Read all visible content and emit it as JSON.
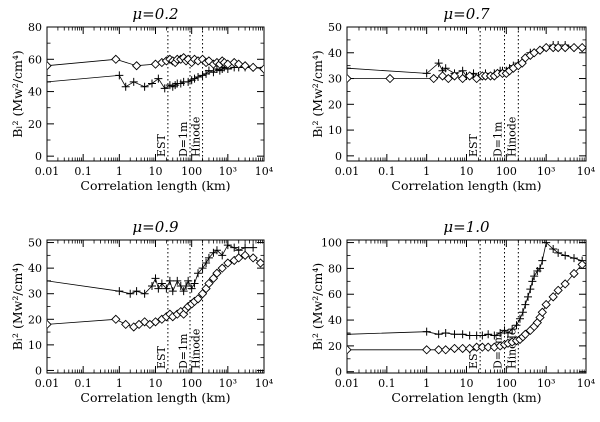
{
  "figure_note": "Four-panel figure: B_L^2 vs correlation length at different mu",
  "chart_data": [
    {
      "type": "line",
      "title": "μ=0.2",
      "xlabel": "Correlation length (km)",
      "ylabel": "Bₗ² (Mw²/cm⁴)",
      "xscale": "log",
      "xlim": [
        0.01,
        10000
      ],
      "ylim": [
        -3,
        80
      ],
      "xticks": [
        {
          "v": 0.01,
          "l": "0.01"
        },
        {
          "v": 0.1,
          "l": "0.1"
        },
        {
          "v": 1,
          "l": "1"
        },
        {
          "v": 10,
          "l": "10"
        },
        {
          "v": 100,
          "l": "100"
        },
        {
          "v": 1000,
          "l": "10³"
        },
        {
          "v": 10000,
          "l": "10⁴"
        }
      ],
      "yticks": [
        0,
        20,
        40,
        60,
        80
      ],
      "vlines": [
        {
          "x": 22,
          "label": "EST"
        },
        {
          "x": 90,
          "label": "D=1m"
        },
        {
          "x": 200,
          "label": "Hinode"
        }
      ],
      "series": [
        {
          "name": "plus",
          "marker": "plus",
          "x": [
            0.01,
            1,
            1.5,
            2.5,
            5,
            8,
            12,
            18,
            25,
            30,
            35,
            40,
            50,
            60,
            80,
            100,
            120,
            150,
            200,
            250,
            300,
            400,
            500,
            600,
            700,
            800,
            1000,
            1500,
            2000,
            3000,
            5000,
            10000
          ],
          "y": [
            46,
            50,
            43,
            46,
            43,
            45,
            48,
            42,
            44,
            43,
            44,
            45,
            45,
            46,
            46,
            47,
            48,
            49,
            50,
            51,
            53,
            52,
            54,
            53,
            54,
            55,
            54,
            55,
            55,
            55,
            55,
            55
          ]
        },
        {
          "name": "diamond",
          "marker": "diamond",
          "x": [
            0.01,
            0.8,
            3,
            10,
            15,
            20,
            25,
            30,
            35,
            40,
            50,
            60,
            70,
            80,
            100,
            120,
            150,
            200,
            250,
            300,
            400,
            500,
            600,
            700,
            800,
            1000,
            1500,
            2000,
            3000,
            5000,
            10000
          ],
          "y": [
            56,
            60,
            56,
            57,
            58,
            59,
            60,
            59,
            58,
            60,
            60,
            61,
            59,
            60,
            58,
            60,
            59,
            60,
            58,
            59,
            57,
            58,
            57,
            59,
            58,
            57,
            58,
            57,
            56,
            55,
            54
          ]
        }
      ]
    },
    {
      "type": "line",
      "title": "μ=0.7",
      "xlabel": "Correlation length (km)",
      "ylabel": "Bₗ² (Mw²/cm⁴)",
      "xscale": "log",
      "xlim": [
        0.01,
        10000
      ],
      "ylim": [
        -2,
        50
      ],
      "xticks": [
        {
          "v": 0.01,
          "l": "0.01"
        },
        {
          "v": 0.1,
          "l": "0.1"
        },
        {
          "v": 1,
          "l": "1"
        },
        {
          "v": 10,
          "l": "10"
        },
        {
          "v": 100,
          "l": "100"
        },
        {
          "v": 1000,
          "l": "10³"
        },
        {
          "v": 10000,
          "l": "10⁴"
        }
      ],
      "yticks": [
        0,
        10,
        20,
        30,
        40,
        50
      ],
      "vlines": [
        {
          "x": 22,
          "label": "EST"
        },
        {
          "x": 90,
          "label": "D=1m"
        },
        {
          "x": 200,
          "label": "Hinode"
        }
      ],
      "series": [
        {
          "name": "plus",
          "marker": "plus",
          "x": [
            0.01,
            1,
            2,
            2.5,
            3,
            5,
            8,
            10,
            15,
            20,
            25,
            30,
            40,
            50,
            60,
            70,
            80,
            100,
            120,
            150,
            200,
            300,
            400,
            500,
            700,
            1000,
            1500,
            2000,
            3000,
            5000,
            8000
          ],
          "y": [
            34,
            32,
            36,
            33,
            34,
            32,
            33,
            31,
            32,
            31,
            31,
            32,
            31,
            32,
            32,
            33,
            33,
            33,
            34,
            35,
            36,
            38,
            40,
            40,
            41,
            42,
            43,
            43,
            43,
            42,
            42
          ]
        },
        {
          "name": "diamond",
          "marker": "diamond",
          "x": [
            0.01,
            0.12,
            1.5,
            2.5,
            3.5,
            5,
            8,
            12,
            18,
            25,
            30,
            40,
            50,
            60,
            80,
            100,
            120,
            150,
            200,
            250,
            300,
            400,
            500,
            700,
            1000,
            1500,
            2000,
            3000,
            5000,
            8000
          ],
          "y": [
            30,
            30,
            30,
            31,
            30,
            31,
            30,
            31,
            30,
            31,
            31,
            31,
            31,
            32,
            32,
            32,
            33,
            34,
            35,
            36,
            38,
            39,
            40,
            41,
            42,
            42,
            42,
            42,
            42,
            42
          ]
        }
      ]
    },
    {
      "type": "line",
      "title": "μ=0.9",
      "xlabel": "Correlation length (km)",
      "ylabel": "Bₗ² (Mw²/cm⁴)",
      "xscale": "log",
      "xlim": [
        0.01,
        10000
      ],
      "ylim": [
        -1,
        51
      ],
      "xticks": [
        {
          "v": 0.01,
          "l": "0.01"
        },
        {
          "v": 0.1,
          "l": "0.1"
        },
        {
          "v": 1,
          "l": "1"
        },
        {
          "v": 10,
          "l": "10"
        },
        {
          "v": 100,
          "l": "100"
        },
        {
          "v": 1000,
          "l": "10³"
        },
        {
          "v": 10000,
          "l": "10⁴"
        }
      ],
      "yticks": [
        0,
        10,
        20,
        30,
        40,
        50
      ],
      "vlines": [
        {
          "x": 22,
          "label": "EST"
        },
        {
          "x": 90,
          "label": "D=1m"
        },
        {
          "x": 200,
          "label": "Hinode"
        }
      ],
      "series": [
        {
          "name": "plus",
          "marker": "plus",
          "x": [
            0.01,
            1,
            2,
            3,
            5,
            8,
            10,
            12,
            15,
            20,
            25,
            30,
            40,
            50,
            60,
            70,
            80,
            100,
            120,
            150,
            200,
            250,
            300,
            400,
            500,
            700,
            1000,
            1500,
            2000,
            3000,
            5000
          ],
          "y": [
            35,
            31,
            30,
            31,
            30,
            33,
            36,
            32,
            34,
            32,
            35,
            31,
            35,
            33,
            31,
            33,
            35,
            32,
            34,
            38,
            40,
            42,
            44,
            46,
            47,
            45,
            49,
            48,
            47,
            48,
            48
          ]
        },
        {
          "name": "diamond",
          "marker": "diamond",
          "x": [
            0.01,
            0.8,
            1.5,
            2.5,
            3.5,
            5,
            7,
            10,
            15,
            20,
            25,
            30,
            40,
            50,
            60,
            70,
            80,
            100,
            120,
            150,
            200,
            250,
            300,
            400,
            500,
            700,
            1000,
            1500,
            2000,
            3000,
            5000,
            8000
          ],
          "y": [
            18,
            20,
            18,
            17,
            18,
            19,
            18,
            19,
            20,
            21,
            22,
            21,
            22,
            23,
            22,
            24,
            25,
            26,
            27,
            28,
            30,
            32,
            34,
            36,
            38,
            40,
            42,
            43,
            44,
            45,
            44,
            42
          ]
        }
      ]
    },
    {
      "type": "line",
      "title": "μ=1.0",
      "xlabel": "Correlation length (km)",
      "ylabel": "Bₗ² (Mw²/cm⁴)",
      "xscale": "log",
      "xlim": [
        0.01,
        10000
      ],
      "ylim": [
        -1,
        102
      ],
      "xticks": [
        {
          "v": 0.01,
          "l": "0.01"
        },
        {
          "v": 0.1,
          "l": "0.1"
        },
        {
          "v": 1,
          "l": "1"
        },
        {
          "v": 10,
          "l": "10"
        },
        {
          "v": 100,
          "l": "100"
        },
        {
          "v": 1000,
          "l": "10³"
        },
        {
          "v": 10000,
          "l": "10⁴"
        }
      ],
      "yticks": [
        0,
        20,
        40,
        60,
        80,
        100
      ],
      "vlines": [
        {
          "x": 22,
          "label": "EST"
        },
        {
          "x": 90,
          "label": "D=1m"
        },
        {
          "x": 200,
          "label": "Hinode"
        }
      ],
      "series": [
        {
          "name": "plus",
          "marker": "plus",
          "x": [
            0.01,
            1,
            2,
            3,
            5,
            8,
            12,
            18,
            25,
            35,
            50,
            70,
            90,
            110,
            140,
            180,
            220,
            260,
            300,
            350,
            400,
            450,
            500,
            600,
            700,
            800,
            1000,
            1500,
            2000,
            3000,
            5000,
            8000
          ],
          "y": [
            29,
            31,
            29,
            30,
            29,
            29,
            28,
            28,
            28,
            29,
            28,
            30,
            32,
            30,
            33,
            36,
            41,
            46,
            52,
            58,
            64,
            70,
            74,
            78,
            80,
            86,
            100,
            95,
            92,
            90,
            88,
            86
          ]
        },
        {
          "name": "diamond",
          "marker": "diamond",
          "x": [
            0.01,
            1,
            2,
            3,
            5,
            8,
            12,
            18,
            25,
            35,
            50,
            70,
            90,
            110,
            140,
            180,
            220,
            260,
            300,
            400,
            500,
            600,
            700,
            800,
            1000,
            1500,
            2000,
            3000,
            5000,
            8000
          ],
          "y": [
            17,
            17,
            17,
            17,
            18,
            18,
            18,
            19,
            19,
            19,
            19,
            20,
            21,
            22,
            23,
            24,
            25,
            27,
            29,
            32,
            35,
            38,
            42,
            46,
            52,
            58,
            63,
            68,
            76,
            83
          ]
        }
      ]
    }
  ]
}
